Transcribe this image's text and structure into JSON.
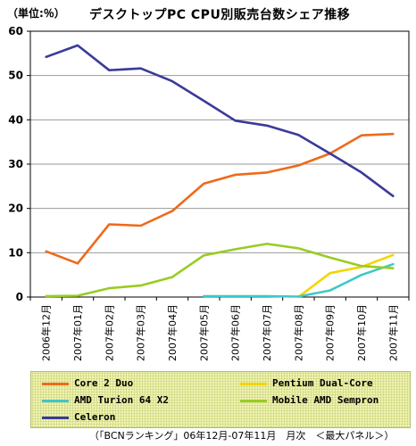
{
  "header": {
    "unit": "（単位:％）",
    "title": "デスクトップPC CPU別販売台数シェア推移"
  },
  "chart_data": {
    "type": "line",
    "title": "デスクトップPC CPU別販売台数シェア推移",
    "ylabel": "（単位:％）",
    "ylim": [
      0,
      60
    ],
    "yticks": [
      0,
      10,
      20,
      30,
      40,
      50,
      60
    ],
    "grid": "horizontal",
    "legend_position": "bottom",
    "categories": [
      "2006年12月",
      "2007年01月",
      "2007年02月",
      "2007年03月",
      "2007年04月",
      "2007年05月",
      "2007年06月",
      "2007年07月",
      "2007年08月",
      "2007年09月",
      "2007年10月",
      "2007年11月"
    ],
    "series": [
      {
        "name": "Core 2 Duo",
        "color": "#ee6a1a",
        "values": [
          10.3,
          7.6,
          16.4,
          16.1,
          19.4,
          25.6,
          27.6,
          28.1,
          29.7,
          32.4,
          36.5,
          36.8
        ]
      },
      {
        "name": "Pentium Dual-Core",
        "color": "#f5d400",
        "values": [
          null,
          null,
          null,
          null,
          null,
          null,
          null,
          null,
          0,
          5.4,
          6.8,
          9.5
        ]
      },
      {
        "name": "AMD Turion 64 X2",
        "color": "#3ec8c8",
        "values": [
          null,
          null,
          null,
          null,
          null,
          0.2,
          0.2,
          0.2,
          0.1,
          1.5,
          5.0,
          7.4
        ]
      },
      {
        "name": "Mobile AMD Sempron",
        "color": "#99cc22",
        "values": [
          0.2,
          0.3,
          2.0,
          2.6,
          4.5,
          9.4,
          10.8,
          12.0,
          11.0,
          8.9,
          7.0,
          6.5
        ]
      },
      {
        "name": "Celeron",
        "color": "#3a3a9a",
        "values": [
          54.2,
          56.8,
          51.2,
          51.6,
          48.7,
          44.3,
          39.8,
          38.7,
          36.6,
          32.4,
          28.1,
          22.8
        ]
      }
    ]
  },
  "source_note": "（「BCNランキング」06年12月-07年11月　月次　＜最大パネル＞）"
}
